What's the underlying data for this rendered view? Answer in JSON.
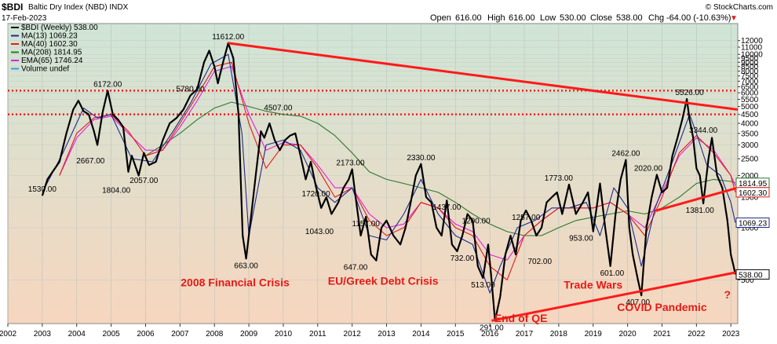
{
  "header": {
    "ticker": "$BDI",
    "name": "Baltic Dry Index (NBD) INDX",
    "date": "17-Feb-2023",
    "source": "© StockCharts.com",
    "open_label": "Open",
    "open": "616.00",
    "high_label": "High",
    "high": "616.00",
    "low_label": "Low",
    "low": "530.00",
    "close_label": "Close",
    "close": "538.00",
    "chg_label": "Chg",
    "chg": "-64.00 (-10.63%)"
  },
  "legend": [
    {
      "label": "$BDI (Weekly) 538.00",
      "color": "#000000"
    },
    {
      "label": "MA(13) 1069.23",
      "color": "#1f2a8c"
    },
    {
      "label": "MA(40) 1602.30",
      "color": "#e41b17"
    },
    {
      "label": "MA(208) 1814.95",
      "color": "#2a7a2a"
    },
    {
      "label": "EMA(65) 1746.24",
      "color": "#e020e0"
    },
    {
      "label": "Volume undef",
      "color": "#3a9ad9"
    }
  ],
  "colors": {
    "price": "#000000",
    "ma13": "#1f2a8c",
    "ma40": "#e41b17",
    "ma208": "#2a7a2a",
    "ema65": "#e020e0",
    "trend": "#ff1a1a",
    "bg_top": "#cfe5d6",
    "bg_bottom": "#f7d6be"
  },
  "chart_data": {
    "type": "line",
    "y_scale": "log",
    "ylim": [
      280,
      13000
    ],
    "xlim": [
      2002.0,
      2023.2
    ],
    "x_ticks": [
      "2002",
      "2003",
      "2004",
      "2005",
      "2006",
      "2007",
      "2008",
      "2009",
      "2010",
      "2011",
      "2012",
      "2013",
      "2014",
      "2015",
      "2016",
      "2017",
      "2018",
      "2019",
      "2020",
      "2021",
      "2022",
      "2023"
    ],
    "y_ticks": [
      "12000",
      "11000",
      "10000",
      "9500",
      "9000",
      "8500",
      "8000",
      "7500",
      "7000",
      "6500",
      "6000",
      "5500",
      "5000",
      "4500",
      "4000",
      "3500",
      "3000",
      "2500",
      "2000",
      "1500",
      "1000",
      "500"
    ],
    "series": [
      {
        "name": "$BDI (Weekly) 538.00",
        "key": "price",
        "x": [
          2003.0,
          2003.15,
          2003.3,
          2003.5,
          2003.7,
          2003.9,
          2004.05,
          2004.2,
          2004.35,
          2004.5,
          2004.6,
          2004.75,
          2004.9,
          2005.05,
          2005.2,
          2005.35,
          2005.5,
          2005.6,
          2005.8,
          2005.95,
          2006.1,
          2006.3,
          2006.5,
          2006.7,
          2006.9,
          2007.1,
          2007.3,
          2007.5,
          2007.7,
          2007.85,
          2008.0,
          2008.1,
          2008.25,
          2008.4,
          2008.55,
          2008.7,
          2008.82,
          2008.92,
          2009.05,
          2009.2,
          2009.35,
          2009.45,
          2009.6,
          2009.75,
          2009.9,
          2010.05,
          2010.2,
          2010.35,
          2010.5,
          2010.65,
          2010.8,
          2010.95,
          2011.1,
          2011.25,
          2011.4,
          2011.6,
          2011.75,
          2011.9,
          2012.0,
          2012.1,
          2012.25,
          2012.4,
          2012.55,
          2012.7,
          2012.85,
          2013.0,
          2013.2,
          2013.4,
          2013.55,
          2013.7,
          2013.85,
          2014.0,
          2014.15,
          2014.3,
          2014.45,
          2014.6,
          2014.75,
          2014.9,
          2015.05,
          2015.2,
          2015.35,
          2015.5,
          2015.65,
          2015.8,
          2015.95,
          2016.05,
          2016.15,
          2016.3,
          2016.45,
          2016.6,
          2016.75,
          2016.9,
          2017.05,
          2017.2,
          2017.35,
          2017.5,
          2017.65,
          2017.8,
          2017.95,
          2018.1,
          2018.3,
          2018.5,
          2018.7,
          2018.85,
          2019.0,
          2019.1,
          2019.2,
          2019.35,
          2019.5,
          2019.65,
          2019.8,
          2019.95,
          2020.05,
          2020.15,
          2020.3,
          2020.4,
          2020.55,
          2020.7,
          2020.85,
          2021.0,
          2021.15,
          2021.3,
          2021.45,
          2021.6,
          2021.72,
          2021.8,
          2021.9,
          2022.0,
          2022.1,
          2022.2,
          2022.35,
          2022.45,
          2022.6,
          2022.75,
          2022.9,
          2023.0,
          2023.08,
          2023.13
        ],
        "values": [
          1530,
          1900,
          2100,
          2400,
          3500,
          4800,
          5400,
          4700,
          4500,
          3600,
          3000,
          4600,
          6172,
          4500,
          4200,
          3800,
          2100,
          2600,
          2000,
          2700,
          2300,
          2400,
          3200,
          4000,
          4300,
          4800,
          5780,
          6300,
          9000,
          10500,
          8500,
          6800,
          9000,
          11612,
          9500,
          4500,
          900,
          663,
          1100,
          2000,
          3600,
          3300,
          4000,
          3200,
          2800,
          3200,
          3400,
          3500,
          2600,
          1900,
          2400,
          1720,
          1300,
          1500,
          1200,
          1400,
          1700,
          1900,
          2173,
          1500,
          900,
          1157,
          700,
          647,
          1000,
          1100,
          900,
          800,
          1000,
          1400,
          2000,
          2330,
          1500,
          1400,
          1000,
          900,
          1437,
          800,
          732,
          900,
          1200,
          1100,
          600,
          513,
          800,
          500,
          291,
          400,
          700,
          900,
          702,
          1100,
          1257,
          1100,
          900,
          1000,
          1400,
          1500,
          1600,
          1200,
          1773,
          1200,
          1400,
          1600,
          953,
          1300,
          1800,
          1000,
          601,
          1200,
          1900,
          2462,
          1000,
          700,
          500,
          407,
          1000,
          1500,
          2020,
          1600,
          1700,
          2600,
          3300,
          4300,
          5526,
          4200,
          3344,
          2200,
          2000,
          1381,
          2500,
          3300,
          2000,
          1700,
          1100,
          700,
          600,
          538
        ]
      },
      {
        "name": "MA(13) 1069.23",
        "key": "ma13",
        "x": [
          2003.0,
          2003.6,
          2004.2,
          2004.6,
          2005.0,
          2005.6,
          2006.2,
          2006.8,
          2007.3,
          2007.9,
          2008.4,
          2008.8,
          2009.0,
          2009.5,
          2010.0,
          2010.5,
          2011.0,
          2011.5,
          2012.0,
          2012.5,
          2013.0,
          2013.5,
          2014.0,
          2014.5,
          2015.0,
          2015.5,
          2016.0,
          2016.3,
          2016.8,
          2017.3,
          2017.8,
          2018.3,
          2018.8,
          2019.2,
          2019.6,
          2020.0,
          2020.4,
          2020.8,
          2021.3,
          2021.8,
          2022.0,
          2022.3,
          2022.7,
          2023.0,
          2023.13
        ],
        "values": [
          1600,
          2700,
          4900,
          4300,
          4500,
          2500,
          2400,
          3600,
          5200,
          8800,
          10000,
          3500,
          900,
          3000,
          3200,
          2800,
          1700,
          1400,
          1700,
          900,
          850,
          1200,
          1900,
          1200,
          900,
          800,
          420,
          600,
          1000,
          1100,
          1300,
          1300,
          1400,
          900,
          1700,
          1300,
          600,
          1300,
          2400,
          4500,
          3500,
          2300,
          2000,
          1400,
          1069
        ]
      },
      {
        "name": "MA(40) 1602.30",
        "key": "ma40",
        "x": [
          2003.5,
          2004.0,
          2004.5,
          2005.0,
          2005.5,
          2006.0,
          2006.5,
          2007.0,
          2007.5,
          2008.0,
          2008.5,
          2009.0,
          2009.5,
          2010.0,
          2010.5,
          2011.0,
          2011.5,
          2012.0,
          2012.5,
          2013.0,
          2013.5,
          2014.0,
          2014.5,
          2015.0,
          2015.5,
          2016.0,
          2016.5,
          2017.0,
          2017.5,
          2018.0,
          2018.5,
          2019.0,
          2019.5,
          2020.0,
          2020.5,
          2021.0,
          2021.5,
          2022.0,
          2022.5,
          2023.0,
          2023.13
        ],
        "values": [
          2000,
          3500,
          4300,
          4500,
          3600,
          2600,
          2800,
          4000,
          5800,
          8500,
          9000,
          4000,
          2200,
          3000,
          3000,
          2200,
          1500,
          1700,
          1100,
          900,
          1000,
          1400,
          1300,
          1000,
          900,
          600,
          500,
          900,
          1100,
          1300,
          1300,
          1300,
          1400,
          1200,
          900,
          1500,
          2700,
          3400,
          2700,
          2000,
          1602
        ]
      },
      {
        "name": "MA(208) 1814.95",
        "key": "ma208",
        "x": [
          2006.0,
          2006.5,
          2007.0,
          2007.5,
          2008.0,
          2008.5,
          2009.0,
          2009.5,
          2010.0,
          2010.5,
          2011.0,
          2011.5,
          2012.0,
          2012.5,
          2013.0,
          2013.5,
          2014.0,
          2014.5,
          2015.0,
          2015.5,
          2016.0,
          2016.5,
          2017.0,
          2017.5,
          2018.0,
          2018.5,
          2019.0,
          2019.5,
          2020.0,
          2020.5,
          2021.0,
          2021.5,
          2022.0,
          2022.5,
          2023.0,
          2023.13
        ],
        "values": [
          2600,
          3000,
          3500,
          4200,
          4900,
          5300,
          5000,
          4700,
          4500,
          4400,
          4000,
          3400,
          2700,
          2100,
          1900,
          1800,
          1700,
          1600,
          1400,
          1200,
          1050,
          950,
          900,
          900,
          1000,
          1100,
          1150,
          1200,
          1250,
          1200,
          1300,
          1500,
          1800,
          1900,
          1850,
          1815
        ]
      },
      {
        "name": "EMA(65) 1746.24",
        "key": "ema65",
        "x": [
          2003.5,
          2004.0,
          2004.5,
          2005.0,
          2005.5,
          2006.0,
          2006.5,
          2007.0,
          2007.5,
          2008.0,
          2008.5,
          2009.0,
          2009.5,
          2010.0,
          2010.5,
          2011.0,
          2011.5,
          2012.0,
          2012.5,
          2013.0,
          2013.5,
          2014.0,
          2014.5,
          2015.0,
          2015.5,
          2016.0,
          2016.5,
          2017.0,
          2017.5,
          2018.0,
          2018.5,
          2019.0,
          2019.5,
          2020.0,
          2020.5,
          2021.0,
          2021.5,
          2022.0,
          2022.5,
          2023.0,
          2023.13
        ],
        "values": [
          2000,
          3300,
          4200,
          4400,
          3500,
          2800,
          2800,
          3800,
          5400,
          8000,
          8500,
          4500,
          2800,
          3100,
          3000,
          2300,
          1700,
          1700,
          1200,
          1000,
          1050,
          1400,
          1300,
          1050,
          950,
          700,
          650,
          900,
          1100,
          1300,
          1300,
          1300,
          1400,
          1200,
          1000,
          1600,
          2600,
          3300,
          2800,
          2000,
          1746
        ]
      }
    ],
    "point_labels": [
      {
        "text": "1530.00",
        "x": 2003.0,
        "y": 1530
      },
      {
        "text": "6172.00",
        "x": 2004.9,
        "y": 6172
      },
      {
        "text": "2667.00",
        "x": 2004.4,
        "y": 2667
      },
      {
        "text": "1804.00",
        "x": 2005.15,
        "y": 1804
      },
      {
        "text": "2057.00",
        "x": 2005.95,
        "y": 2057
      },
      {
        "text": "5780.00",
        "x": 2007.3,
        "y": 5780
      },
      {
        "text": "11612.00",
        "x": 2008.4,
        "y": 11612
      },
      {
        "text": "663.00",
        "x": 2008.92,
        "y": 663
      },
      {
        "text": "4507.00",
        "x": 2009.85,
        "y": 4507
      },
      {
        "text": "1720.00",
        "x": 2010.95,
        "y": 1720
      },
      {
        "text": "1043.00",
        "x": 2011.05,
        "y": 1043
      },
      {
        "text": "2173.00",
        "x": 2011.95,
        "y": 2173
      },
      {
        "text": "1157.00",
        "x": 2012.4,
        "y": 1157
      },
      {
        "text": "647.00",
        "x": 2012.1,
        "y": 647
      },
      {
        "text": "2330.00",
        "x": 2014.0,
        "y": 2330
      },
      {
        "text": "1437.00",
        "x": 2014.75,
        "y": 1437
      },
      {
        "text": "732.00",
        "x": 2015.2,
        "y": 732
      },
      {
        "text": "1200.00",
        "x": 2015.6,
        "y": 1200
      },
      {
        "text": "513.00",
        "x": 2015.8,
        "y": 513
      },
      {
        "text": "1257.00",
        "x": 2017.05,
        "y": 1257
      },
      {
        "text": "702.00",
        "x": 2017.45,
        "y": 702
      },
      {
        "text": "291.00",
        "x": 2016.05,
        "y": 291
      },
      {
        "text": "1773.00",
        "x": 2018.0,
        "y": 1773
      },
      {
        "text": "953.00",
        "x": 2018.65,
        "y": 953
      },
      {
        "text": "601.00",
        "x": 2019.55,
        "y": 601
      },
      {
        "text": "2462.00",
        "x": 2019.95,
        "y": 2462
      },
      {
        "text": "2020.00",
        "x": 2020.6,
        "y": 2020
      },
      {
        "text": "407.00",
        "x": 2020.3,
        "y": 407
      },
      {
        "text": "5526.00",
        "x": 2021.8,
        "y": 5526
      },
      {
        "text": "3344.00",
        "x": 2022.2,
        "y": 3344
      },
      {
        "text": "1381.00",
        "x": 2022.1,
        "y": 1381
      }
    ],
    "annotations": [
      {
        "text": "2008 Financial Crisis",
        "x": 2008.6,
        "y": 460
      },
      {
        "text": "EU/Greek Debt Crisis",
        "x": 2012.9,
        "y": 470
      },
      {
        "text": "End of QE",
        "x": 2016.9,
        "y": 286
      },
      {
        "text": "Trade Wars",
        "x": 2019.0,
        "y": 445
      },
      {
        "text": "COVID Pandemic",
        "x": 2021.0,
        "y": 330
      },
      {
        "text": "?",
        "x": 2022.9,
        "y": 390
      }
    ],
    "dotted_lines": [
      6172,
      4507
    ],
    "trend_lines": [
      {
        "x1": 2008.4,
        "y1": 11612,
        "x2": 2023.2,
        "y2": 4800
      },
      {
        "x1": 2016.05,
        "y1": 291,
        "x2": 2023.2,
        "y2": 555
      },
      {
        "x1": 2020.8,
        "y1": 1250,
        "x2": 2023.2,
        "y2": 1700
      }
    ],
    "right_boxes": [
      {
        "text": "1814.95",
        "y": 1814.95,
        "key": "ma208"
      },
      {
        "text": "1602.30",
        "y": 1602.3,
        "key": "ma40"
      },
      {
        "text": "1069.23",
        "y": 1069.23,
        "key": "ma13"
      },
      {
        "text": "538.00",
        "y": 538,
        "key": "price"
      }
    ]
  }
}
